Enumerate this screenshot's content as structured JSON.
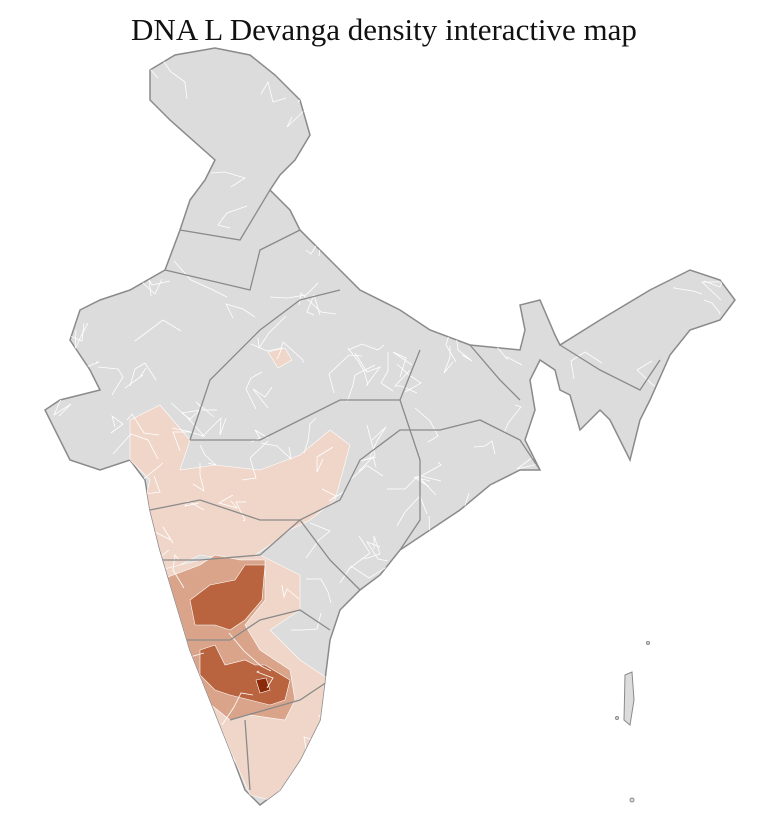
{
  "title": "DNA L Devanga density interactive map",
  "palette": {
    "background": "#dcdcdc",
    "level_1": "#f0d6c9",
    "level_2": "#d9a48a",
    "level_3": "#b9643f",
    "level_4": "#8a2a08",
    "district_border": "#ffffff",
    "state_border": "#8a8a8a"
  }
}
